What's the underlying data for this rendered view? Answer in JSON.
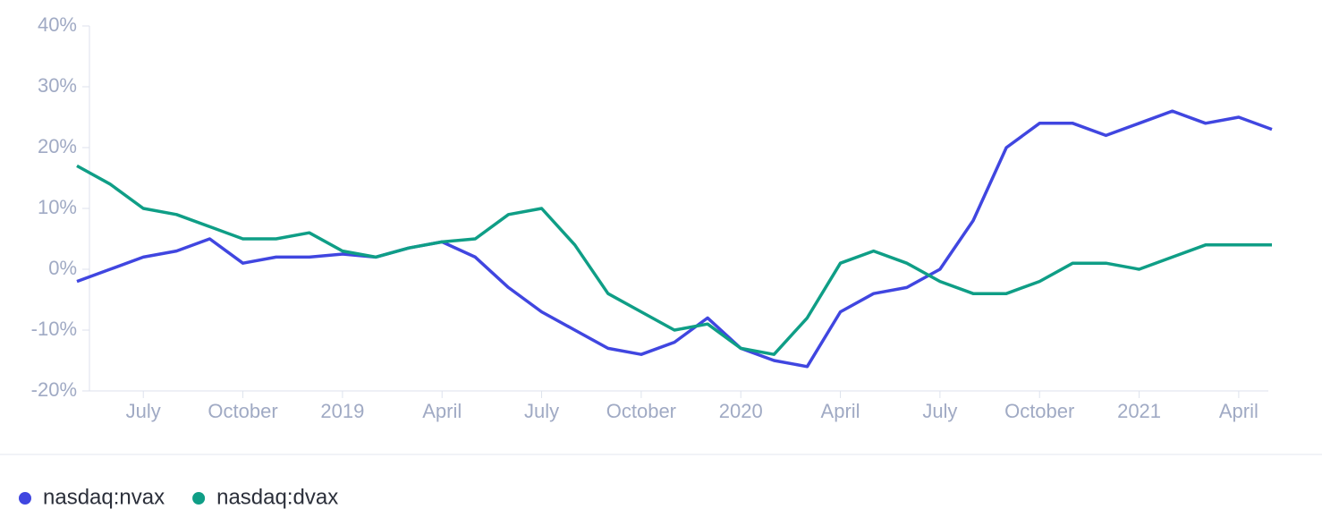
{
  "chart_data": {
    "type": "line",
    "x": [
      "2018-05",
      "2018-06",
      "2018-07",
      "2018-08",
      "2018-09",
      "2018-10",
      "2018-11",
      "2018-12",
      "2019-01",
      "2019-02",
      "2019-03",
      "2019-04",
      "2019-05",
      "2019-06",
      "2019-07",
      "2019-08",
      "2019-09",
      "2019-10",
      "2019-11",
      "2019-12",
      "2020-01",
      "2020-02",
      "2020-03",
      "2020-04",
      "2020-05",
      "2020-06",
      "2020-07",
      "2020-08",
      "2020-09",
      "2020-10",
      "2020-11",
      "2020-12",
      "2021-01",
      "2021-02",
      "2021-03",
      "2021-04",
      "2021-05"
    ],
    "series": [
      {
        "name": "nasdaq:nvax",
        "color": "#4046e0",
        "values": [
          -2,
          0,
          2,
          3,
          5,
          1,
          2,
          2,
          2.5,
          2,
          3.5,
          4.5,
          2,
          -3,
          -7,
          -10,
          -13,
          -14,
          -12,
          -8,
          -13,
          -15,
          -16,
          -7,
          -4,
          -3,
          0,
          8,
          20,
          24,
          24,
          22,
          24,
          26,
          24,
          25,
          23
        ]
      },
      {
        "name": "nasdaq:dvax",
        "color": "#0f9e86",
        "values": [
          17,
          14,
          10,
          9,
          7,
          5,
          5,
          6,
          3,
          2,
          3.5,
          4.5,
          5,
          9,
          10,
          4,
          -4,
          -7,
          -10,
          -9,
          -13,
          -14,
          -8,
          1,
          3,
          1,
          -2,
          -4,
          -4,
          -2,
          1,
          1,
          0,
          2,
          4,
          4,
          4
        ]
      }
    ],
    "xlim": [
      "2018-05",
      "2021-05"
    ],
    "xticks": [
      {
        "value": "2018-07",
        "label": "July"
      },
      {
        "value": "2018-10",
        "label": "October"
      },
      {
        "value": "2019-01",
        "label": "2019"
      },
      {
        "value": "2019-04",
        "label": "April"
      },
      {
        "value": "2019-07",
        "label": "July"
      },
      {
        "value": "2019-10",
        "label": "October"
      },
      {
        "value": "2020-01",
        "label": "2020"
      },
      {
        "value": "2020-04",
        "label": "April"
      },
      {
        "value": "2020-07",
        "label": "July"
      },
      {
        "value": "2020-10",
        "label": "October"
      },
      {
        "value": "2021-01",
        "label": "2021"
      },
      {
        "value": "2021-04",
        "label": "April"
      }
    ],
    "ylim": [
      -20,
      40
    ],
    "yticks": [
      {
        "value": -20,
        "label": "-20%"
      },
      {
        "value": -10,
        "label": "-10%"
      },
      {
        "value": 0,
        "label": "0%"
      },
      {
        "value": 10,
        "label": "10%"
      },
      {
        "value": 20,
        "label": "20%"
      },
      {
        "value": 30,
        "label": "30%"
      },
      {
        "value": 40,
        "label": "40%"
      }
    ],
    "legend": "bottom-left"
  }
}
